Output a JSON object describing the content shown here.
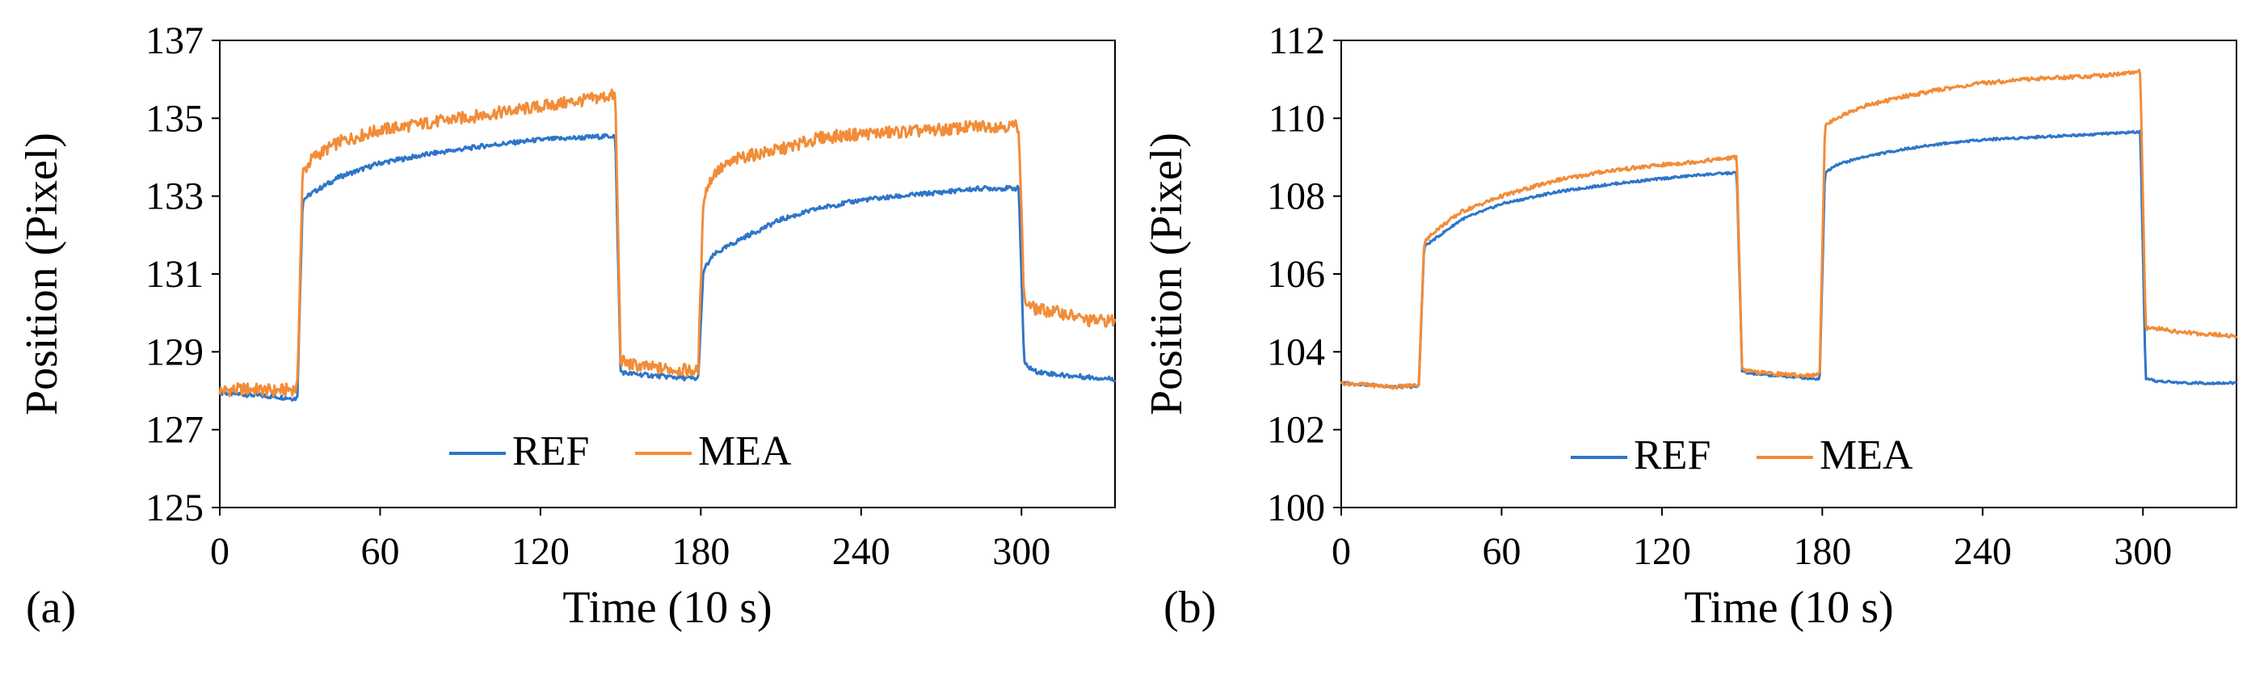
{
  "chart_data": [
    {
      "panel_label": "(a)",
      "type": "line",
      "title": "",
      "xlabel": "Time (10 s)",
      "ylabel": "Position (Pixel)",
      "xlim": [
        0,
        335
      ],
      "ylim": [
        125,
        137
      ],
      "xticks": [
        0,
        60,
        120,
        180,
        240,
        300
      ],
      "yticks": [
        125,
        127,
        129,
        131,
        133,
        135,
        137
      ],
      "grid": false,
      "legend": "bottom-center",
      "series": [
        {
          "name": "REF",
          "color": "#2e75c9",
          "x": [
            0,
            10,
            20,
            29,
            31,
            35,
            45,
            60,
            80,
            100,
            120,
            135,
            148,
            150,
            152,
            160,
            170,
            179,
            181,
            185,
            195,
            210,
            225,
            240,
            255,
            270,
            285,
            299,
            301,
            305,
            315,
            325,
            335
          ],
          "y": [
            127.95,
            127.9,
            127.85,
            127.8,
            132.9,
            133.1,
            133.5,
            133.85,
            134.1,
            134.3,
            134.45,
            134.5,
            134.55,
            128.5,
            128.45,
            128.4,
            128.35,
            128.3,
            131.1,
            131.5,
            131.9,
            132.4,
            132.7,
            132.9,
            133.0,
            133.1,
            133.2,
            133.2,
            128.7,
            128.5,
            128.4,
            128.35,
            128.3
          ]
        },
        {
          "name": "MEA",
          "color": "#f28c38",
          "x": [
            0,
            10,
            20,
            29,
            31,
            35,
            45,
            60,
            80,
            100,
            120,
            135,
            148,
            150,
            152,
            160,
            170,
            179,
            181,
            185,
            195,
            210,
            225,
            240,
            255,
            270,
            285,
            299,
            301,
            305,
            315,
            325,
            335
          ],
          "y": [
            128.0,
            128.05,
            128.0,
            128.05,
            133.6,
            134.0,
            134.4,
            134.7,
            134.9,
            135.1,
            135.3,
            135.45,
            135.6,
            128.8,
            128.7,
            128.6,
            128.55,
            128.5,
            133.0,
            133.6,
            134.0,
            134.2,
            134.5,
            134.6,
            134.65,
            134.7,
            134.8,
            134.8,
            130.3,
            130.1,
            130.0,
            129.8,
            129.8
          ]
        }
      ]
    },
    {
      "panel_label": "(b)",
      "type": "line",
      "title": "",
      "xlabel": "Time (10 s)",
      "ylabel": "Position (Pixel)",
      "xlim": [
        0,
        335
      ],
      "ylim": [
        100,
        112
      ],
      "xticks": [
        0,
        60,
        120,
        180,
        240,
        300
      ],
      "yticks": [
        100,
        102,
        104,
        106,
        108,
        110,
        112
      ],
      "grid": false,
      "legend": "bottom-center",
      "series": [
        {
          "name": "REF",
          "color": "#2e75c9",
          "x": [
            0,
            10,
            20,
            29,
            31,
            35,
            45,
            60,
            80,
            100,
            120,
            135,
            148,
            150,
            152,
            160,
            170,
            179,
            181,
            185,
            195,
            210,
            225,
            240,
            255,
            270,
            285,
            299,
            301,
            305,
            315,
            325,
            335
          ],
          "y": [
            103.2,
            103.15,
            103.1,
            103.1,
            106.7,
            106.9,
            107.4,
            107.8,
            108.1,
            108.3,
            108.45,
            108.55,
            108.6,
            103.5,
            103.45,
            103.4,
            103.35,
            103.3,
            108.6,
            108.8,
            109.0,
            109.2,
            109.35,
            109.45,
            109.5,
            109.55,
            109.6,
            109.65,
            103.3,
            103.25,
            103.2,
            103.2,
            103.2
          ]
        },
        {
          "name": "MEA",
          "color": "#f28c38",
          "x": [
            0,
            10,
            20,
            29,
            31,
            35,
            45,
            60,
            80,
            100,
            120,
            135,
            148,
            150,
            152,
            160,
            170,
            179,
            181,
            185,
            195,
            210,
            225,
            240,
            255,
            270,
            285,
            299,
            301,
            305,
            315,
            325,
            335
          ],
          "y": [
            103.2,
            103.15,
            103.1,
            103.15,
            106.8,
            107.1,
            107.6,
            108.0,
            108.4,
            108.65,
            108.8,
            108.9,
            109.0,
            103.55,
            103.5,
            103.45,
            103.4,
            103.4,
            109.8,
            110.0,
            110.3,
            110.55,
            110.75,
            110.9,
            111.0,
            111.05,
            111.1,
            111.2,
            104.6,
            104.6,
            104.5,
            104.45,
            104.4
          ]
        }
      ]
    }
  ]
}
